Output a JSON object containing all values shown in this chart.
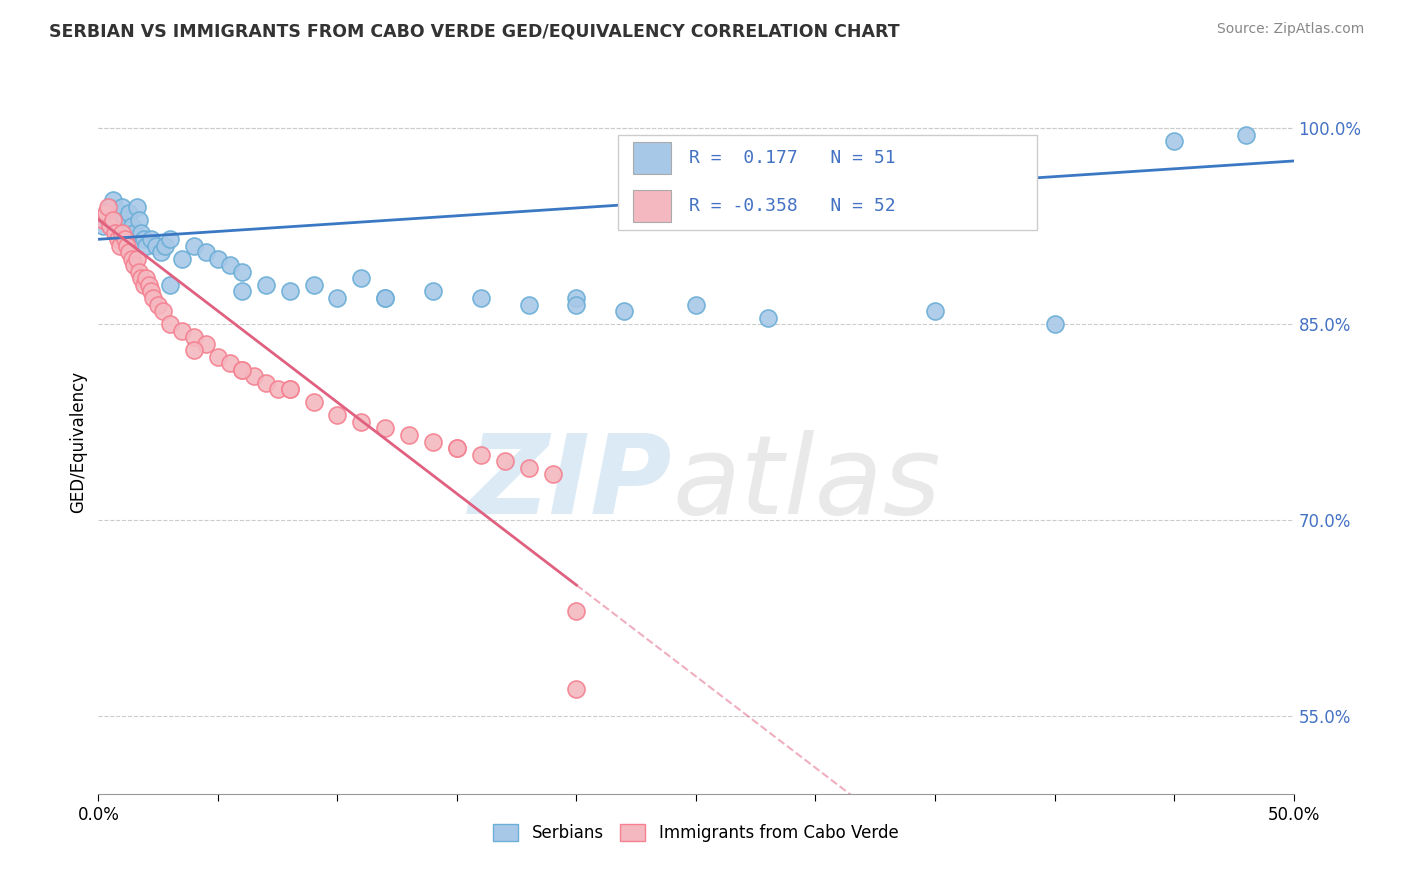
{
  "title": "SERBIAN VS IMMIGRANTS FROM CABO VERDE GED/EQUIVALENCY CORRELATION CHART",
  "source": "Source: ZipAtlas.com",
  "ylabel": "GED/Equivalency",
  "xlim": [
    0.0,
    50.0
  ],
  "ylim": [
    49.0,
    103.0
  ],
  "ytick_vals": [
    55.0,
    70.0,
    85.0,
    100.0
  ],
  "ytick_labels": [
    "55.0%",
    "70.0%",
    "85.0%",
    "100.0%"
  ],
  "xtick_vals": [
    0.0,
    5.0,
    10.0,
    15.0,
    20.0,
    25.0,
    30.0,
    35.0,
    40.0,
    45.0,
    50.0
  ],
  "serbian_R": 0.177,
  "serbian_N": 51,
  "caboverde_R": -0.358,
  "caboverde_N": 52,
  "serbian_color": "#a8c8e8",
  "caboverde_color": "#f4b8c0",
  "serbian_edge_color": "#6baed6",
  "caboverde_edge_color": "#f48090",
  "serbian_line_color": "#3b78c3",
  "caboverde_line_color": "#e06080",
  "legend_label_serbian": "Serbians",
  "legend_label_caboverde": "Immigrants from Cabo Verde",
  "background_color": "#ffffff",
  "serbian_x": [
    0.2,
    0.3,
    0.4,
    0.5,
    0.6,
    0.7,
    0.8,
    0.9,
    1.0,
    1.1,
    1.2,
    1.3,
    1.4,
    1.5,
    1.6,
    1.7,
    1.8,
    1.9,
    2.0,
    2.2,
    2.4,
    2.6,
    2.8,
    3.0,
    3.5,
    4.0,
    4.5,
    5.0,
    5.5,
    6.0,
    7.0,
    8.0,
    9.0,
    10.0,
    11.0,
    12.0,
    14.0,
    16.0,
    18.0,
    20.0,
    22.0,
    25.0,
    28.0,
    35.0,
    40.0,
    45.0,
    48.0,
    3.0,
    6.0,
    12.0,
    20.0
  ],
  "serbian_y": [
    92.5,
    93.0,
    93.5,
    94.0,
    94.5,
    93.0,
    92.0,
    93.5,
    94.0,
    93.0,
    92.0,
    93.5,
    92.5,
    92.0,
    94.0,
    93.0,
    92.0,
    91.5,
    91.0,
    91.5,
    91.0,
    90.5,
    91.0,
    91.5,
    90.0,
    91.0,
    90.5,
    90.0,
    89.5,
    89.0,
    88.0,
    87.5,
    88.0,
    87.0,
    88.5,
    87.0,
    87.5,
    87.0,
    86.5,
    87.0,
    86.0,
    86.5,
    85.5,
    86.0,
    85.0,
    99.0,
    99.5,
    88.0,
    87.5,
    87.0,
    86.5
  ],
  "caboverde_x": [
    0.2,
    0.3,
    0.4,
    0.5,
    0.6,
    0.7,
    0.8,
    0.9,
    1.0,
    1.1,
    1.2,
    1.3,
    1.4,
    1.5,
    1.6,
    1.7,
    1.8,
    1.9,
    2.0,
    2.1,
    2.2,
    2.3,
    2.5,
    2.7,
    3.0,
    3.5,
    4.0,
    4.5,
    5.0,
    5.5,
    6.0,
    6.5,
    7.0,
    7.5,
    8.0,
    9.0,
    10.0,
    11.0,
    12.0,
    13.0,
    14.0,
    15.0,
    16.0,
    17.0,
    18.0,
    19.0,
    20.0,
    4.0,
    6.0,
    8.0,
    15.0,
    20.0
  ],
  "caboverde_y": [
    93.0,
    93.5,
    94.0,
    92.5,
    93.0,
    92.0,
    91.5,
    91.0,
    92.0,
    91.5,
    91.0,
    90.5,
    90.0,
    89.5,
    90.0,
    89.0,
    88.5,
    88.0,
    88.5,
    88.0,
    87.5,
    87.0,
    86.5,
    86.0,
    85.0,
    84.5,
    84.0,
    83.5,
    82.5,
    82.0,
    81.5,
    81.0,
    80.5,
    80.0,
    80.0,
    79.0,
    78.0,
    77.5,
    77.0,
    76.5,
    76.0,
    75.5,
    75.0,
    74.5,
    74.0,
    73.5,
    63.0,
    83.0,
    81.5,
    80.0,
    75.5,
    57.0
  ]
}
